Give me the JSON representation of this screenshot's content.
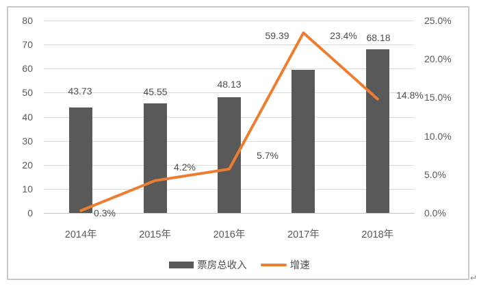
{
  "chart_data": {
    "type": "combo-bar-line",
    "categories": [
      "2014年",
      "2015年",
      "2016年",
      "2017年",
      "2018年"
    ],
    "series": [
      {
        "name": "票房总收入",
        "type": "bar",
        "axis": "left",
        "values": [
          43.73,
          45.55,
          48.13,
          59.39,
          68.18
        ],
        "labels": [
          "43.73",
          "45.55",
          "48.13",
          "59.39",
          "68.18"
        ],
        "color": "#595959"
      },
      {
        "name": "增速",
        "type": "line",
        "axis": "right",
        "values": [
          0.3,
          4.2,
          5.7,
          23.4,
          14.8
        ],
        "labels": [
          "0.3%",
          "4.2%",
          "5.7%",
          "23.4%",
          "14.8%"
        ],
        "color": "#ED7D31"
      }
    ],
    "title": "",
    "xlabel": "",
    "ylabel": "",
    "left_axis": {
      "min": 0,
      "max": 80,
      "step": 10,
      "ticks": [
        "80",
        "70",
        "60",
        "50",
        "40",
        "30",
        "20",
        "10",
        "0"
      ]
    },
    "right_axis": {
      "min": 0,
      "max": 25,
      "step": 5,
      "ticks": [
        "25.0%",
        "20.0%",
        "15.0%",
        "10.0%",
        "5.0%",
        "0.0%"
      ]
    },
    "grid": true,
    "legend_position": "bottom"
  },
  "colors": {
    "bar": "#595959",
    "line": "#ED7D31",
    "gridline": "#dcdcdc",
    "axis_line": "#c3c3c3",
    "tick_text": "#595959",
    "label_text": "#4d4d4d"
  },
  "legend": {
    "bar_label": "票房总收入",
    "line_label": "增速"
  },
  "misc": {
    "return_mark": "↵"
  }
}
